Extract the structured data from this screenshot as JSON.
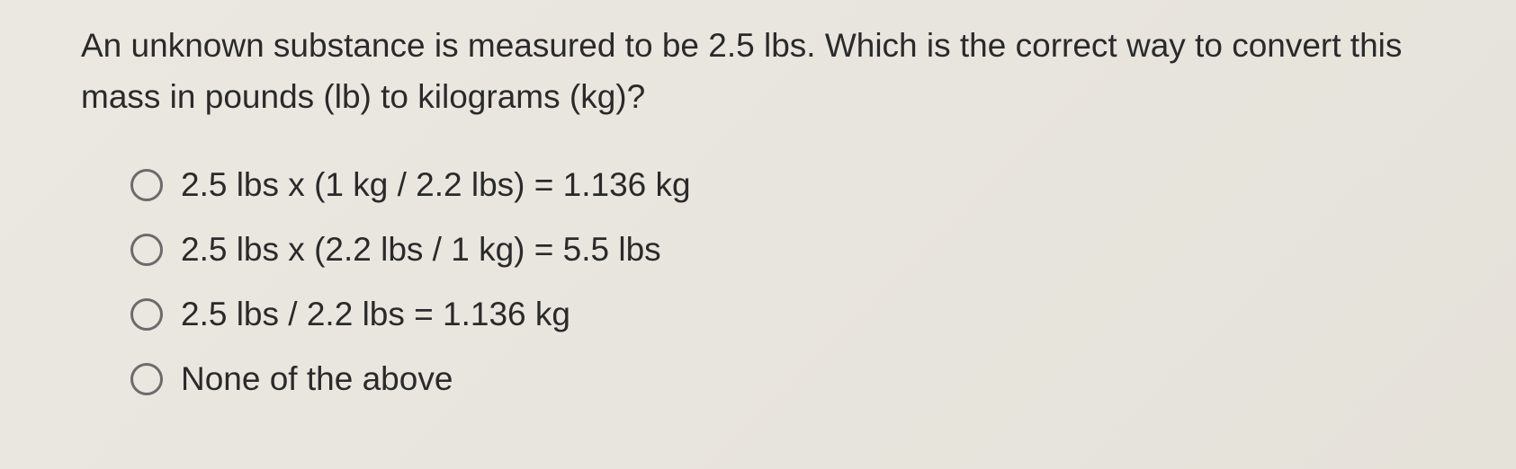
{
  "question": "An unknown substance is measured to be 2.5 lbs. Which is the correct way to convert this mass in pounds (lb) to kilograms (kg)?",
  "options": [
    {
      "label": "2.5 lbs x (1 kg / 2.2 lbs) = 1.136 kg"
    },
    {
      "label": "2.5 lbs x (2.2 lbs / 1 kg) = 5.5 lbs"
    },
    {
      "label": "2.5 lbs / 2.2 lbs = 1.136 kg"
    },
    {
      "label": "None of the above"
    }
  ],
  "colors": {
    "background": "#e8e5de",
    "text": "#2a2a2a",
    "radio_border": "#6b6b6b"
  },
  "typography": {
    "font_family": "Helvetica Neue, Arial, sans-serif",
    "question_fontsize": 37,
    "option_fontsize": 37
  }
}
